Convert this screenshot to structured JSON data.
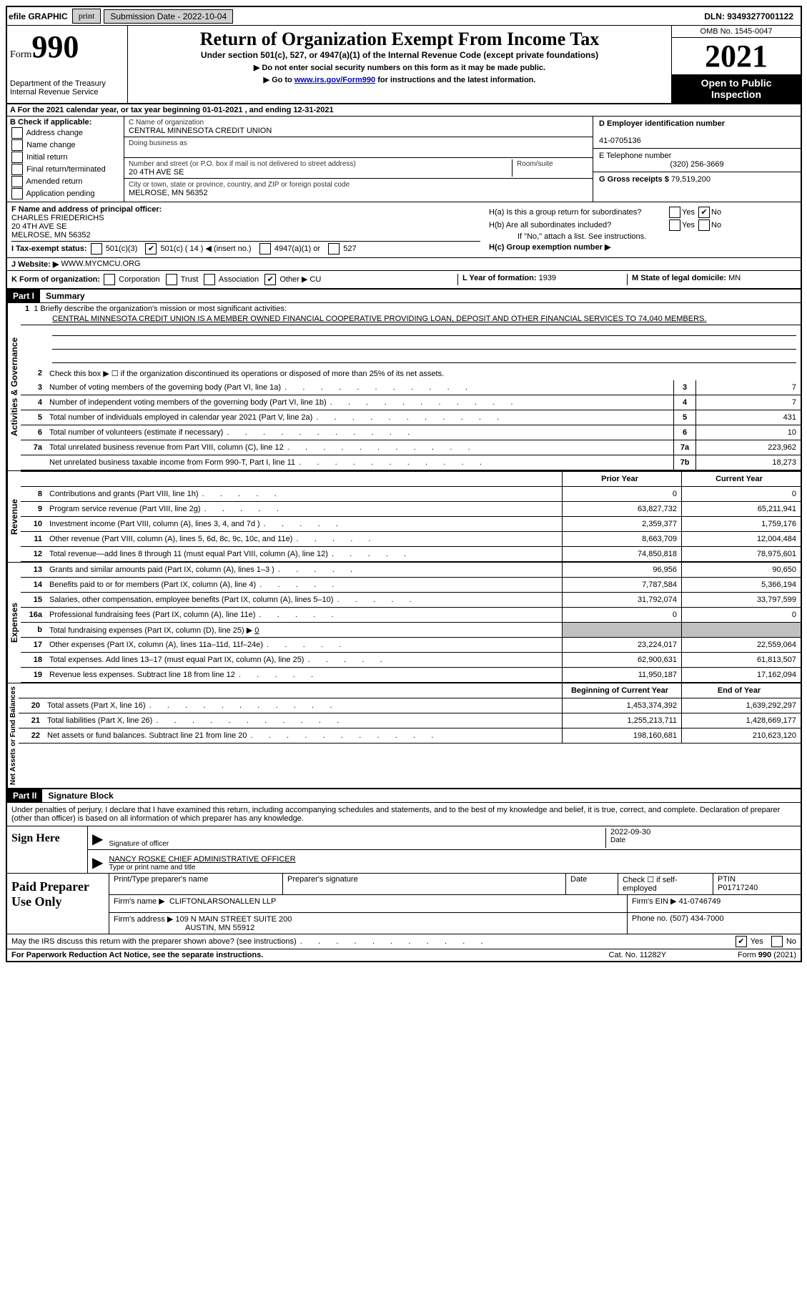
{
  "topbar": {
    "efile_label": "efile GRAPHIC",
    "print_btn": "print",
    "submission_date_label": "Submission Date - 2022-10-04",
    "dln": "DLN: 93493277001122"
  },
  "header": {
    "form_label": "Form",
    "form_number": "990",
    "dept": "Department of the Treasury",
    "irs": "Internal Revenue Service",
    "title": "Return of Organization Exempt From Income Tax",
    "subtitle": "Under section 501(c), 527, or 4947(a)(1) of the Internal Revenue Code (except private foundations)",
    "instr1": "▶ Do not enter social security numbers on this form as it may be made public.",
    "instr2_prefix": "▶ Go to ",
    "instr2_link": "www.irs.gov/Form990",
    "instr2_suffix": " for instructions and the latest information.",
    "omb": "OMB No. 1545-0047",
    "year": "2021",
    "open": "Open to Public Inspection"
  },
  "row_a": "A For the 2021 calendar year, or tax year beginning 01-01-2021   , and ending 12-31-2021",
  "section_b": {
    "label": "B Check if applicable:",
    "opts": [
      "Address change",
      "Name change",
      "Initial return",
      "Final return/terminated",
      "Amended return",
      "Application pending"
    ]
  },
  "section_c": {
    "name_label": "C Name of organization",
    "name": "CENTRAL MINNESOTA CREDIT UNION",
    "dba_label": "Doing business as",
    "dba": "",
    "street_label": "Number and street (or P.O. box if mail is not delivered to street address)",
    "room_label": "Room/suite",
    "street": "20 4TH AVE SE",
    "city_label": "City or town, state or province, country, and ZIP or foreign postal code",
    "city": "MELROSE, MN  56352"
  },
  "section_d": {
    "ein_label": "D Employer identification number",
    "ein": "41-0705136",
    "phone_label": "E Telephone number",
    "phone": "(320) 256-3669",
    "gross_label": "G Gross receipts $",
    "gross": "79,519,200"
  },
  "section_f": {
    "label": "F Name and address of principal officer:",
    "name": "CHARLES FRIEDERICHS",
    "street": "20 4TH AVE SE",
    "city": "MELROSE, MN  56352"
  },
  "section_i": {
    "label": "I Tax-exempt status:",
    "c3": "501(c)(3)",
    "c_other": "501(c) ( 14 ) ◀ (insert no.)",
    "a4947": "4947(a)(1) or",
    "s527": "527"
  },
  "section_h": {
    "ha": "H(a)  Is this a group return for subordinates?",
    "hb": "H(b)  Are all subordinates included?",
    "hb_note": "If \"No,\" attach a list. See instructions.",
    "hc": "H(c)  Group exemption number ▶",
    "yes": "Yes",
    "no": "No"
  },
  "section_j": {
    "label": "J Website: ▶",
    "value": "WWW.MYCMCU.ORG"
  },
  "row_k": {
    "label": "K Form of organization:",
    "corp": "Corporation",
    "trust": "Trust",
    "assoc": "Association",
    "other": "Other ▶",
    "other_val": "CU",
    "l_label": "L Year of formation:",
    "l_val": "1939",
    "m_label": "M State of legal domicile:",
    "m_val": "MN"
  },
  "part1": {
    "hdr": "Part I",
    "title": "Summary",
    "line1_label": "1  Briefly describe the organization's mission or most significant activities:",
    "line1_text": "CENTRAL MINNESOTA CREDIT UNION IS A MEMBER OWNED FINANCIAL COOPERATIVE PROVIDING LOAN, DEPOSIT AND OTHER FINANCIAL SERVICES TO 74,040 MEMBERS.",
    "line2": "Check this box ▶ ☐ if the organization discontinued its operations or disposed of more than 25% of its net assets.",
    "activities_label": "Activities & Governance",
    "revenue_label": "Revenue",
    "expenses_label": "Expenses",
    "netassets_label": "Net Assets or Fund Balances",
    "lines_top": [
      {
        "n": "3",
        "desc": "Number of voting members of the governing body (Part VI, line 1a)",
        "box": "3",
        "val": "7"
      },
      {
        "n": "4",
        "desc": "Number of independent voting members of the governing body (Part VI, line 1b)",
        "box": "4",
        "val": "7"
      },
      {
        "n": "5",
        "desc": "Total number of individuals employed in calendar year 2021 (Part V, line 2a)",
        "box": "5",
        "val": "431"
      },
      {
        "n": "6",
        "desc": "Total number of volunteers (estimate if necessary)",
        "box": "6",
        "val": "10"
      },
      {
        "n": "7a",
        "desc": "Total unrelated business revenue from Part VIII, column (C), line 12",
        "box": "7a",
        "val": "223,962"
      },
      {
        "n": "",
        "desc": "Net unrelated business taxable income from Form 990-T, Part I, line 11",
        "box": "7b",
        "val": "18,273"
      }
    ],
    "py_hdr": "Prior Year",
    "cy_hdr": "Current Year",
    "revenue_lines": [
      {
        "n": "8",
        "desc": "Contributions and grants (Part VIII, line 1h)",
        "py": "0",
        "cy": "0"
      },
      {
        "n": "9",
        "desc": "Program service revenue (Part VIII, line 2g)",
        "py": "63,827,732",
        "cy": "65,211,941"
      },
      {
        "n": "10",
        "desc": "Investment income (Part VIII, column (A), lines 3, 4, and 7d )",
        "py": "2,359,377",
        "cy": "1,759,176"
      },
      {
        "n": "11",
        "desc": "Other revenue (Part VIII, column (A), lines 5, 6d, 8c, 9c, 10c, and 11e)",
        "py": "8,663,709",
        "cy": "12,004,484"
      },
      {
        "n": "12",
        "desc": "Total revenue—add lines 8 through 11 (must equal Part VIII, column (A), line 12)",
        "py": "74,850,818",
        "cy": "78,975,601"
      }
    ],
    "expense_lines": [
      {
        "n": "13",
        "desc": "Grants and similar amounts paid (Part IX, column (A), lines 1–3 )",
        "py": "96,956",
        "cy": "90,650"
      },
      {
        "n": "14",
        "desc": "Benefits paid to or for members (Part IX, column (A), line 4)",
        "py": "7,787,584",
        "cy": "5,366,194"
      },
      {
        "n": "15",
        "desc": "Salaries, other compensation, employee benefits (Part IX, column (A), lines 5–10)",
        "py": "31,792,074",
        "cy": "33,797,599"
      },
      {
        "n": "16a",
        "desc": "Professional fundraising fees (Part IX, column (A), line 11e)",
        "py": "0",
        "cy": "0"
      },
      {
        "n": "b",
        "desc_html": "Total fundraising expenses (Part IX, column (D), line 25) ▶",
        "inline_val": "0",
        "py": "shaded",
        "cy": "shaded"
      },
      {
        "n": "17",
        "desc": "Other expenses (Part IX, column (A), lines 11a–11d, 11f–24e)",
        "py": "23,224,017",
        "cy": "22,559,064"
      },
      {
        "n": "18",
        "desc": "Total expenses. Add lines 13–17 (must equal Part IX, column (A), line 25)",
        "py": "62,900,631",
        "cy": "61,813,507"
      },
      {
        "n": "19",
        "desc": "Revenue less expenses. Subtract line 18 from line 12",
        "py": "11,950,187",
        "cy": "17,162,094"
      }
    ],
    "boy_hdr": "Beginning of Current Year",
    "eoy_hdr": "End of Year",
    "na_lines": [
      {
        "n": "20",
        "desc": "Total assets (Part X, line 16)",
        "py": "1,453,374,392",
        "cy": "1,639,292,297"
      },
      {
        "n": "21",
        "desc": "Total liabilities (Part X, line 26)",
        "py": "1,255,213,711",
        "cy": "1,428,669,177"
      },
      {
        "n": "22",
        "desc": "Net assets or fund balances. Subtract line 21 from line 20",
        "py": "198,160,681",
        "cy": "210,623,120"
      }
    ]
  },
  "part2": {
    "hdr": "Part II",
    "title": "Signature Block",
    "declare": "Under penalties of perjury, I declare that I have examined this return, including accompanying schedules and statements, and to the best of my knowledge and belief, it is true, correct, and complete. Declaration of preparer (other than officer) is based on all information of which preparer has any knowledge.",
    "sign_here": "Sign Here",
    "sig_officer": "Signature of officer",
    "sig_date": "2022-09-30",
    "date_lbl": "Date",
    "officer_name": "NANCY ROSKE  CHIEF ADMINISTRATIVE OFFICER",
    "type_name_lbl": "Type or print name and title",
    "paid_label": "Paid Preparer Use Only",
    "prep_name_lbl": "Print/Type preparer's name",
    "prep_sig_lbl": "Preparer's signature",
    "prep_date_lbl": "Date",
    "check_self": "Check ☐ if self-employed",
    "ptin_lbl": "PTIN",
    "ptin": "P01717240",
    "firm_name_lbl": "Firm's name    ▶",
    "firm_name": "CLIFTONLARSONALLEN LLP",
    "firm_ein_lbl": "Firm's EIN ▶",
    "firm_ein": "41-0746749",
    "firm_addr_lbl": "Firm's address ▶",
    "firm_addr1": "109 N MAIN STREET SUITE 200",
    "firm_addr2": "AUSTIN, MN  55912",
    "firm_phone_lbl": "Phone no.",
    "firm_phone": "(507) 434-7000",
    "discuss": "May the IRS discuss this return with the preparer shown above? (see instructions)",
    "yes": "Yes",
    "no": "No"
  },
  "footer": {
    "pra": "For Paperwork Reduction Act Notice, see the separate instructions.",
    "cat": "Cat. No. 11282Y",
    "form": "Form 990 (2021)"
  }
}
